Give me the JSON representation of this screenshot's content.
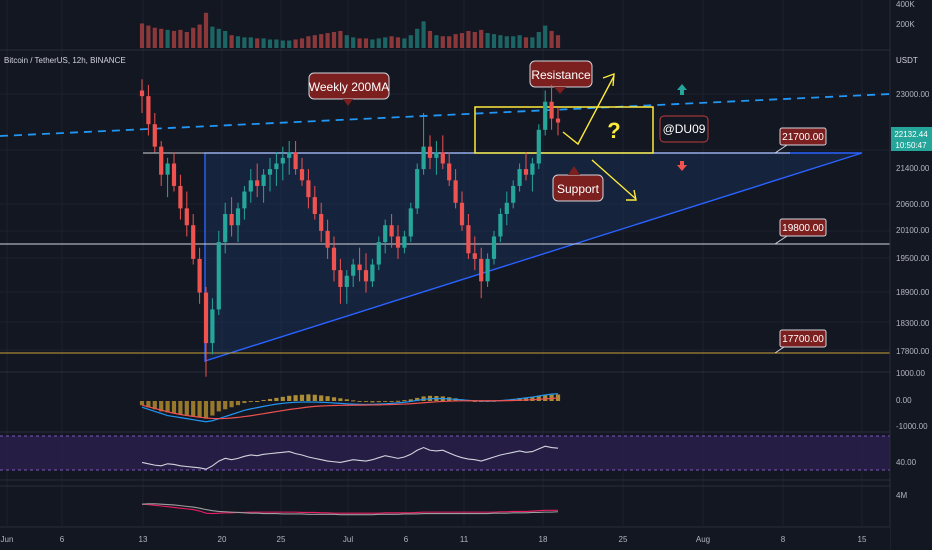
{
  "header": {
    "symbol_title": "Bitcoin / TetherUS, 12h, BINANCE",
    "quote_currency": "USDT"
  },
  "price_panel": {
    "last_price": "22132.44",
    "countdown": "10:50:47",
    "axis_ticks": [
      "23000.00",
      "21400.00",
      "20600.00",
      "20100.00",
      "19500.00",
      "18900.00",
      "18300.00",
      "17800.00"
    ],
    "level_badges": [
      "21700.00",
      "19800.00",
      "17700.00"
    ],
    "annotations": {
      "weekly_ma": "Weekly 200MA",
      "resistance": "Resistance",
      "support": "Support",
      "author": "@DU09",
      "question": "?"
    }
  },
  "volume_panel": {
    "ticks": [
      "400K",
      "200K"
    ]
  },
  "macd_panel": {
    "ticks": [
      "1000.00",
      "0.00",
      "-1000.00"
    ]
  },
  "rsi_panel": {
    "ticks": [
      "40.00"
    ]
  },
  "obv_panel": {
    "ticks": [
      "4M"
    ]
  },
  "time_axis": [
    "Jun",
    "6",
    "13",
    "20",
    "25",
    "Jul",
    "6",
    "11",
    "18",
    "25",
    "Aug",
    "8",
    "15"
  ],
  "colors": {
    "background": "#131722",
    "up": "#26a69a",
    "down": "#ef5350",
    "triangle_line": "#2962ff",
    "ma_dash": "#2196f3",
    "resistance_box": "#ffeb3b",
    "badge": "#7b1f1f",
    "rsi_band": "#2a1f4a"
  },
  "chart_data": {
    "type": "candlestick",
    "interval": "12h",
    "x_unit": "candle index (12h bars from ~Jun 1)",
    "ylim": [
      17400,
      23600
    ],
    "levels": [
      21700,
      19800,
      17700
    ],
    "ohlc": [
      [
        22700,
        22900,
        22300,
        22600
      ],
      [
        22600,
        22800,
        21900,
        22100
      ],
      [
        22100,
        22300,
        21600,
        21700
      ],
      [
        21700,
        21800,
        21000,
        21200
      ],
      [
        21200,
        21500,
        20800,
        21400
      ],
      [
        21400,
        21600,
        20900,
        21000
      ],
      [
        21000,
        21200,
        20400,
        20600
      ],
      [
        20600,
        20900,
        20100,
        20300
      ],
      [
        20300,
        20500,
        19600,
        19700
      ],
      [
        19700,
        19900,
        18900,
        19100
      ],
      [
        19100,
        19200,
        17600,
        18200
      ],
      [
        18200,
        19000,
        18000,
        18800
      ],
      [
        18800,
        20200,
        18700,
        20000
      ],
      [
        20000,
        20700,
        19800,
        20500
      ],
      [
        20500,
        20800,
        20100,
        20300
      ],
      [
        20300,
        20700,
        20000,
        20600
      ],
      [
        20600,
        21000,
        20400,
        20900
      ],
      [
        20900,
        21300,
        20700,
        21100
      ],
      [
        21100,
        21400,
        20800,
        21000
      ],
      [
        21000,
        21300,
        20700,
        21200
      ],
      [
        21200,
        21500,
        20900,
        21300
      ],
      [
        21300,
        21600,
        21000,
        21400
      ],
      [
        21400,
        21700,
        21100,
        21500
      ],
      [
        21500,
        21800,
        21200,
        21600
      ],
      [
        21600,
        21800,
        21200,
        21300
      ],
      [
        21300,
        21500,
        21000,
        21100
      ],
      [
        21100,
        21300,
        20600,
        20800
      ],
      [
        20800,
        21000,
        20400,
        20500
      ],
      [
        20500,
        20700,
        20000,
        20200
      ],
      [
        20200,
        20400,
        19700,
        19900
      ],
      [
        19900,
        20100,
        19300,
        19500
      ],
      [
        19500,
        19700,
        18900,
        19200
      ],
      [
        19200,
        19500,
        18900,
        19400
      ],
      [
        19400,
        19700,
        19200,
        19600
      ],
      [
        19600,
        19900,
        19300,
        19500
      ],
      [
        19500,
        19800,
        19100,
        19300
      ],
      [
        19300,
        19700,
        19200,
        19600
      ],
      [
        19600,
        20100,
        19500,
        20000
      ],
      [
        20000,
        20400,
        19800,
        20300
      ],
      [
        20300,
        20500,
        19900,
        20100
      ],
      [
        20100,
        20300,
        19700,
        19900
      ],
      [
        19900,
        20200,
        19800,
        20100
      ],
      [
        20100,
        20700,
        20000,
        20600
      ],
      [
        20600,
        21400,
        20500,
        21300
      ],
      [
        21300,
        22300,
        21200,
        21700
      ],
      [
        21700,
        21900,
        21300,
        21500
      ],
      [
        21500,
        21800,
        21200,
        21600
      ],
      [
        21600,
        21900,
        21300,
        21400
      ],
      [
        21400,
        21600,
        21000,
        21100
      ],
      [
        21100,
        21300,
        20600,
        20700
      ],
      [
        20700,
        20900,
        20200,
        20300
      ],
      [
        20300,
        20500,
        19700,
        19800
      ],
      [
        19800,
        20100,
        19500,
        19700
      ],
      [
        19700,
        19900,
        19000,
        19300
      ],
      [
        19300,
        19800,
        19200,
        19700
      ],
      [
        19700,
        20200,
        19600,
        20100
      ],
      [
        20100,
        20600,
        20000,
        20500
      ],
      [
        20500,
        20900,
        20300,
        20700
      ],
      [
        20700,
        21100,
        20600,
        21000
      ],
      [
        21000,
        21400,
        20900,
        21300
      ],
      [
        21300,
        21600,
        21100,
        21200
      ],
      [
        21200,
        21500,
        20900,
        21400
      ],
      [
        21400,
        22100,
        21300,
        22000
      ],
      [
        22000,
        22700,
        21900,
        22500
      ],
      [
        22500,
        22800,
        22000,
        22200
      ],
      [
        22200,
        22400,
        21900,
        22130
      ]
    ],
    "volume": [
      230,
      210,
      190,
      180,
      170,
      160,
      170,
      150,
      190,
      220,
      330,
      200,
      180,
      160,
      120,
      110,
      100,
      100,
      90,
      90,
      80,
      80,
      70,
      70,
      80,
      90,
      110,
      120,
      130,
      140,
      150,
      160,
      120,
      100,
      90,
      90,
      80,
      90,
      100,
      110,
      100,
      90,
      120,
      180,
      250,
      160,
      120,
      110,
      110,
      130,
      140,
      160,
      150,
      170,
      140,
      130,
      120,
      110,
      110,
      120,
      100,
      100,
      150,
      210,
      160,
      120
    ],
    "volume_ylim": [
      0,
      450
    ],
    "macd_hist": [
      -200,
      -300,
      -400,
      -500,
      -550,
      -600,
      -650,
      -700,
      -750,
      -800,
      -850,
      -700,
      -500,
      -400,
      -300,
      -200,
      -100,
      -50,
      0,
      50,
      100,
      150,
      200,
      250,
      280,
      300,
      320,
      300,
      270,
      230,
      180,
      130,
      80,
      30,
      -20,
      -50,
      -70,
      -60,
      -40,
      -20,
      10,
      40,
      80,
      150,
      220,
      250,
      240,
      220,
      180,
      130,
      80,
      30,
      -10,
      -30,
      -20,
      10,
      40,
      70,
      100,
      140,
      170,
      190,
      230,
      280,
      300,
      310
    ],
    "macd_line": [
      -300,
      -400,
      -500,
      -600,
      -700,
      -750,
      -800,
      -850,
      -900,
      -950,
      -1000,
      -950,
      -850,
      -750,
      -650,
      -550,
      -450,
      -380,
      -320,
      -260,
      -200,
      -150,
      -110,
      -80,
      -60,
      -50,
      -45,
      -50,
      -60,
      -75,
      -95,
      -115,
      -135,
      -150,
      -160,
      -165,
      -160,
      -150,
      -135,
      -115,
      -90,
      -60,
      -20,
      30,
      80,
      110,
      120,
      115,
      100,
      80,
      55,
      30,
      10,
      -5,
      -10,
      0,
      20,
      45,
      75,
      110,
      150,
      190,
      240,
      290,
      330,
      350
    ],
    "macd_signal": [
      -200,
      -280,
      -360,
      -440,
      -520,
      -590,
      -650,
      -700,
      -740,
      -780,
      -820,
      -840,
      -850,
      -840,
      -820,
      -790,
      -750,
      -710,
      -660,
      -610,
      -560,
      -510,
      -460,
      -410,
      -370,
      -330,
      -290,
      -260,
      -240,
      -225,
      -215,
      -208,
      -203,
      -200,
      -197,
      -194,
      -190,
      -185,
      -178,
      -170,
      -160,
      -148,
      -132,
      -110,
      -85,
      -60,
      -40,
      -22,
      -8,
      2,
      8,
      12,
      13,
      12,
      11,
      11,
      13,
      17,
      24,
      34,
      47,
      62,
      80,
      101,
      123,
      145
    ],
    "macd_ylim": [
      -1300,
      1300
    ],
    "rsi": [
      38,
      36,
      34,
      33,
      36,
      35,
      33,
      32,
      31,
      30,
      28,
      33,
      40,
      44,
      42,
      44,
      47,
      49,
      48,
      50,
      51,
      52,
      53,
      54,
      51,
      49,
      46,
      44,
      42,
      40,
      39,
      38,
      40,
      42,
      41,
      40,
      42,
      45,
      48,
      46,
      44,
      46,
      50,
      56,
      60,
      56,
      55,
      56,
      52,
      48,
      45,
      43,
      42,
      40,
      43,
      46,
      49,
      51,
      53,
      55,
      53,
      54,
      58,
      62,
      60,
      59
    ],
    "rsi_ylim": [
      15,
      80
    ],
    "obv_a": [
      55,
      54,
      52,
      50,
      48,
      46,
      44,
      42,
      40,
      36,
      30,
      29,
      30,
      31,
      31,
      32,
      32,
      33,
      33,
      33,
      33,
      33,
      33,
      33,
      33,
      32,
      32,
      32,
      31,
      31,
      30,
      30,
      30,
      30,
      30,
      30,
      30,
      30,
      31,
      31,
      31,
      31,
      31,
      32,
      33,
      33,
      33,
      33,
      33,
      33,
      33,
      33,
      33,
      33,
      33,
      33,
      34,
      34,
      35,
      35,
      35,
      36,
      37,
      38,
      38,
      38
    ],
    "obv_b": [
      55,
      56,
      56,
      55,
      54,
      53,
      51,
      49,
      47,
      44,
      40,
      37,
      35,
      34,
      33,
      32,
      31,
      30,
      30,
      29,
      29,
      29,
      28,
      28,
      28,
      28,
      27,
      27,
      27,
      27,
      27,
      26,
      26,
      26,
      26,
      26,
      26,
      27,
      27,
      27,
      27,
      28,
      28,
      28,
      29,
      29,
      29,
      29,
      29,
      29,
      29,
      29,
      29,
      29,
      29,
      30,
      30,
      30,
      31,
      31,
      31,
      32,
      32,
      33,
      33,
      34
    ],
    "obv_ylim": [
      0,
      100
    ]
  }
}
